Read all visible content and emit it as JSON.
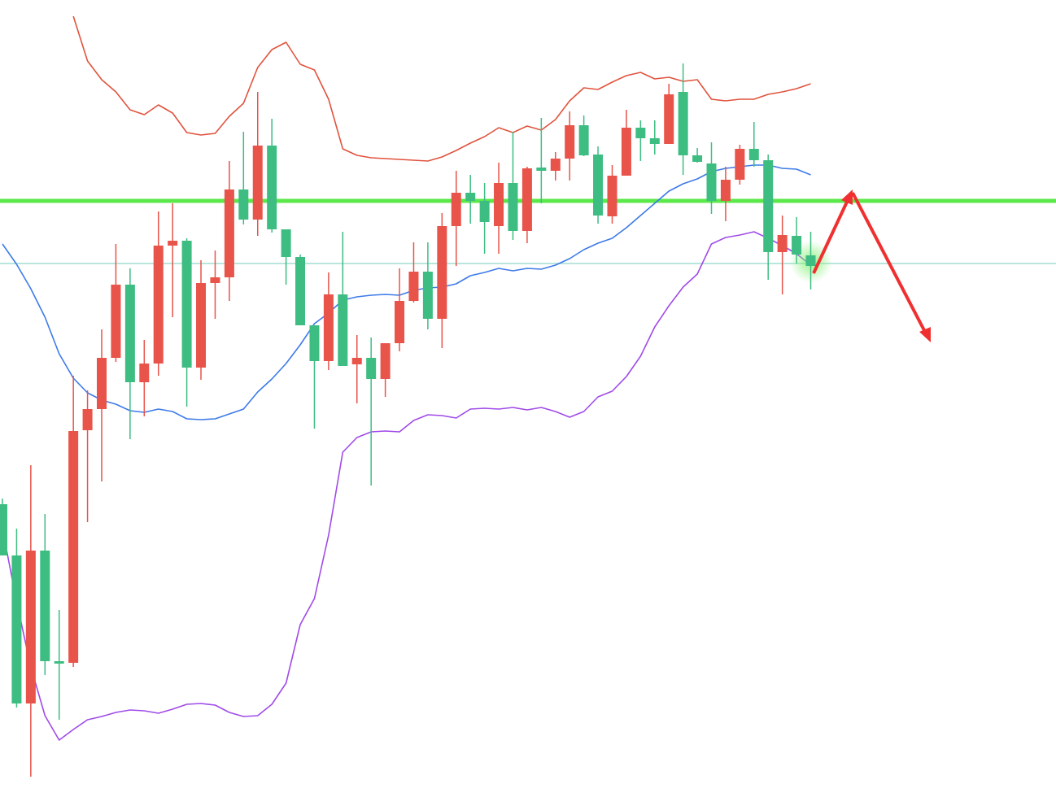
{
  "chart_data": {
    "type": "candlestick",
    "ylim": [
      0,
      980
    ],
    "up_color": "#e8534a",
    "down_color": "#3dbd82",
    "open": [
      360,
      297,
      115,
      303,
      167,
      165,
      451,
      477,
      540,
      630,
      510,
      533,
      678,
      684,
      528,
      632,
      639,
      747,
      710,
      801,
      698,
      664,
      580,
      536,
      618,
      532,
      540,
      514,
      558,
      610,
      646,
      588,
      702,
      743,
      733,
      702,
      755,
      696,
      774,
      770,
      785,
      826,
      790,
      714,
      764,
      823,
      810,
      803,
      867,
      789,
      779,
      733,
      759,
      797,
      783,
      670,
      690,
      666
    ],
    "high": [
      367,
      330,
      408,
      348,
      230,
      518,
      500,
      575,
      680,
      650,
      562,
      720,
      730,
      687,
      660,
      672,
      782,
      818,
      867,
      834,
      698,
      667,
      580,
      645,
      695,
      568,
      565,
      558,
      650,
      682,
      682,
      718,
      770,
      765,
      755,
      780,
      818,
      775,
      835,
      793,
      843,
      838,
      800,
      777,
      845,
      832,
      832,
      877,
      902,
      798,
      805,
      775,
      802,
      830,
      790,
      715,
      713,
      695
    ],
    "low": [
      297,
      110,
      25,
      150,
      95,
      160,
      338,
      388,
      535,
      440,
      468,
      518,
      590,
      480,
      513,
      588,
      610,
      704,
      690,
      694,
      630,
      580,
      453,
      525,
      530,
      484,
      383,
      492,
      548,
      608,
      575,
      552,
      653,
      705,
      668,
      668,
      685,
      681,
      730,
      758,
      758,
      788,
      705,
      705,
      764,
      782,
      790,
      803,
      765,
      780,
      717,
      708,
      753,
      775,
      636,
      618,
      656,
      624
    ],
    "close": [
      297,
      115,
      303,
      167,
      164,
      450,
      477,
      540,
      630,
      510,
      533,
      678,
      684,
      528,
      632,
      639,
      747,
      710,
      801,
      698,
      664,
      580,
      536,
      618,
      530,
      540,
      514,
      558,
      610,
      646,
      588,
      702,
      743,
      733,
      707,
      755,
      696,
      773,
      770,
      785,
      826,
      789,
      715,
      764,
      823,
      810,
      803,
      864,
      789,
      781,
      733,
      759,
      797,
      783,
      670,
      691,
      667,
      653
    ],
    "bands": [
      {
        "color": "#e0533d",
        "values": [
          null,
          null,
          null,
          null,
          null,
          960,
          905,
          882,
          867,
          845,
          839,
          851,
          841,
          817,
          814,
          816,
          837,
          853,
          897,
          919,
          928,
          901,
          894,
          858,
          797,
          789,
          786,
          785,
          784,
          783,
          782,
          787,
          795,
          804,
          812,
          823,
          817,
          825,
          820,
          833,
          856,
          872,
          870,
          879,
          887,
          891,
          883,
          885,
          880,
          882,
          858,
          856,
          858,
          858,
          864,
          867,
          871,
          877
        ]
      },
      {
        "color": "#3d7ae8",
        "values": [
          680,
          655,
          625,
          590,
          545,
          515,
          497,
          488,
          483,
          475,
          473,
          477,
          474,
          465,
          464,
          465,
          471,
          477,
          498,
          514,
          533,
          556,
          582,
          595,
          611,
          615,
          617,
          618,
          617,
          623,
          626,
          627,
          631,
          641,
          645,
          650,
          647,
          650,
          649,
          654,
          662,
          673,
          681,
          687,
          700,
          715,
          730,
          745,
          754,
          760,
          769,
          773,
          775,
          777,
          777,
          773,
          772,
          765
        ]
      },
      {
        "color": "#a04be8",
        "values": [
          330,
          240,
          160,
          100,
          70,
          83,
          95,
          99,
          104,
          107,
          106,
          103,
          108,
          114,
          115,
          113,
          104,
          99,
          100,
          114,
          140,
          212,
          244,
          322,
          424,
          442,
          449,
          450,
          449,
          463,
          470,
          469,
          466,
          477,
          478,
          477,
          479,
          476,
          479,
          474,
          467,
          474,
          492,
          499,
          517,
          542,
          578,
          604,
          627,
          643,
          680,
          688,
          691,
          695,
          687,
          678,
          668,
          654
        ]
      }
    ],
    "levels": [
      {
        "value": 733,
        "color": "#5be84a"
      },
      {
        "value": 656,
        "color": "#8fd6c8"
      }
    ]
  }
}
